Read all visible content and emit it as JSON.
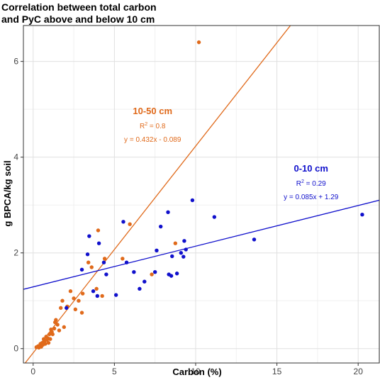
{
  "colors": {
    "series_10_50": "#e06a1b",
    "series_0_10": "#1010cc",
    "grid_major": "#e0e0e0",
    "grid_minor": "#f0f0f0",
    "panel_border": "#333333"
  },
  "chart_data": {
    "type": "scatter",
    "title_lines": [
      "Correlation between total carbon",
      "and PyC above and below 10 cm"
    ],
    "xlabel": "Carbon (%)",
    "ylabel": "g BPCA/kg soil",
    "xlim": [
      -0.6,
      21.3
    ],
    "ylim": [
      -0.3,
      6.75
    ],
    "x_ticks": [
      0,
      5,
      10,
      15,
      20
    ],
    "y_ticks": [
      0,
      2,
      4,
      6
    ],
    "grid": true,
    "series": [
      {
        "name": "10-50 cm",
        "color": "#e06a1b",
        "fit": {
          "slope": 0.432,
          "intercept": -0.089
        },
        "annotation": {
          "label": "10-50 cm",
          "r2_prefix": "R",
          "r2_suffix": " = 0.8",
          "equation": "y = 0.432x - 0.089"
        },
        "points": [
          [
            0.2,
            0.03
          ],
          [
            0.3,
            0.05
          ],
          [
            0.35,
            0.02
          ],
          [
            0.4,
            0.06
          ],
          [
            0.45,
            0.1
          ],
          [
            0.5,
            0.04
          ],
          [
            0.55,
            0.12
          ],
          [
            0.6,
            0.08
          ],
          [
            0.65,
            0.2
          ],
          [
            0.7,
            0.15
          ],
          [
            0.75,
            0.1
          ],
          [
            0.8,
            0.25
          ],
          [
            0.85,
            0.18
          ],
          [
            0.9,
            0.22
          ],
          [
            0.95,
            0.12
          ],
          [
            1.0,
            0.3
          ],
          [
            1.05,
            0.2
          ],
          [
            1.1,
            0.4
          ],
          [
            1.15,
            0.35
          ],
          [
            1.2,
            0.3
          ],
          [
            1.3,
            0.42
          ],
          [
            1.35,
            0.55
          ],
          [
            1.4,
            0.6
          ],
          [
            1.5,
            0.5
          ],
          [
            1.6,
            0.38
          ],
          [
            1.7,
            0.85
          ],
          [
            1.8,
            1.0
          ],
          [
            1.9,
            0.45
          ],
          [
            2.1,
            0.88
          ],
          [
            2.3,
            1.2
          ],
          [
            2.5,
            1.05
          ],
          [
            2.6,
            0.82
          ],
          [
            2.8,
            1.0
          ],
          [
            3.0,
            0.75
          ],
          [
            3.05,
            1.15
          ],
          [
            3.4,
            1.8
          ],
          [
            3.6,
            1.7
          ],
          [
            3.9,
            1.25
          ],
          [
            4.0,
            2.47
          ],
          [
            4.25,
            1.1
          ],
          [
            4.4,
            1.88
          ],
          [
            5.5,
            1.88
          ],
          [
            5.95,
            2.6
          ],
          [
            7.3,
            1.55
          ],
          [
            8.75,
            2.2
          ],
          [
            10.2,
            6.4
          ]
        ]
      },
      {
        "name": "0-10 cm",
        "color": "#1010cc",
        "fit": {
          "slope": 0.085,
          "intercept": 1.29
        },
        "annotation": {
          "label": "0-10 cm",
          "r2_prefix": "R",
          "r2_suffix": " = 0.29",
          "equation": "y = 0.085x + 1.29"
        },
        "points": [
          [
            2.05,
            0.85
          ],
          [
            3.0,
            1.65
          ],
          [
            3.35,
            1.97
          ],
          [
            3.45,
            2.35
          ],
          [
            3.7,
            1.2
          ],
          [
            3.95,
            1.1
          ],
          [
            4.05,
            2.2
          ],
          [
            4.35,
            1.8
          ],
          [
            4.5,
            1.55
          ],
          [
            5.1,
            1.12
          ],
          [
            5.55,
            2.65
          ],
          [
            5.75,
            1.8
          ],
          [
            6.2,
            1.6
          ],
          [
            6.55,
            1.25
          ],
          [
            6.85,
            1.4
          ],
          [
            7.5,
            1.6
          ],
          [
            7.6,
            2.05
          ],
          [
            7.85,
            2.55
          ],
          [
            8.3,
            2.85
          ],
          [
            8.35,
            1.55
          ],
          [
            8.5,
            1.52
          ],
          [
            8.55,
            1.93
          ],
          [
            8.85,
            1.57
          ],
          [
            9.1,
            2.0
          ],
          [
            9.25,
            1.92
          ],
          [
            9.3,
            2.25
          ],
          [
            9.4,
            2.07
          ],
          [
            9.8,
            3.1
          ],
          [
            11.15,
            2.75
          ],
          [
            13.6,
            2.28
          ],
          [
            20.25,
            2.8
          ]
        ]
      }
    ]
  }
}
